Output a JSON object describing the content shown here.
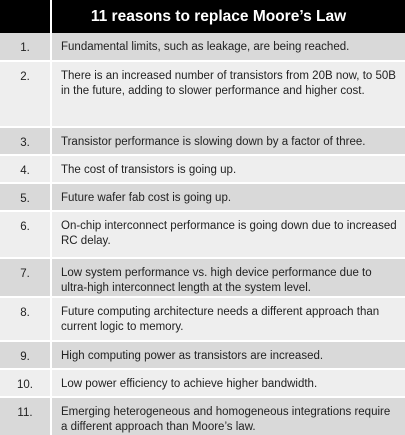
{
  "header": {
    "title": "11 reasons to replace Moore’s Law"
  },
  "reasons": [
    {
      "num": "1.",
      "text": "Fundamental limits, such as leakage, are being reached."
    },
    {
      "num": "2.",
      "text": "There is an increased number of transistors from 20B now, to 50B in the future, adding to slower performance and higher cost."
    },
    {
      "num": "3.",
      "text": "Transistor performance is slowing down by a factor of three."
    },
    {
      "num": "4.",
      "text": "The cost of transistors is going up."
    },
    {
      "num": "5.",
      "text": "Future wafer fab cost is going up."
    },
    {
      "num": "6.",
      "text": "On-chip interconnect performance is going down due to increased RC delay."
    },
    {
      "num": "7.",
      "text": "Low system performance vs. high device performance due to ultra-high interconnect length at the system level."
    },
    {
      "num": "8.",
      "text": "Future computing architecture needs a different approach than current logic to memory."
    },
    {
      "num": "9.",
      "text": "High computing power as transistors are increased."
    },
    {
      "num": "10.",
      "text": "Low power efficiency to achieve higher bandwidth."
    },
    {
      "num": "11.",
      "text": "Emerging heterogeneous and homogeneous integrations require a different approach than Moore’s law."
    }
  ]
}
